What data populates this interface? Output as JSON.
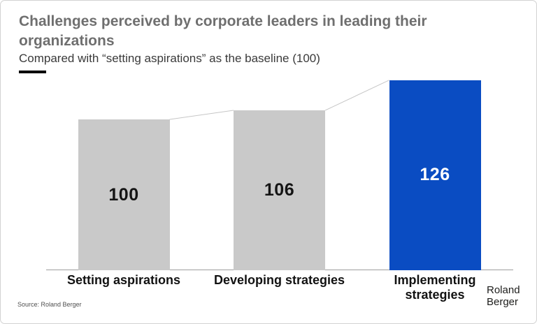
{
  "header": {
    "title": "Challenges perceived by corporate leaders in leading their organizations",
    "subtitle": "Compared with “setting aspirations” as the baseline (100)"
  },
  "chart_data": {
    "type": "bar",
    "categories": [
      "Setting aspirations",
      "Developing strategies",
      "Implementing strategies"
    ],
    "values": [
      100,
      106,
      126
    ],
    "title": "Challenges perceived by corporate leaders in leading their organizations",
    "subtitle": "Compared with “setting aspirations” as the baseline (100)",
    "xlabel": "",
    "ylabel": "",
    "ylim": [
      0,
      135
    ],
    "grid": false,
    "legend": false,
    "baseline_value": 100,
    "highlight_index": 2,
    "bar_colors": [
      "#C9C9C9",
      "#C9C9C9",
      "#0A4CC2"
    ],
    "value_label_colors": [
      "#141414",
      "#141414",
      "#FFFFFF"
    ],
    "connector_lines": true,
    "connector_color": "#C6C6C6",
    "axis_line_color": "#9E9E9E"
  },
  "colors": {
    "highlight_blue": "#0A4CC2",
    "bar_gray": "#C9C9C9",
    "title_gray": "#6F6F6F",
    "dash_black": "#000000"
  },
  "footer": {
    "source": "Source: Roland Berger",
    "logo": {
      "line1": "Roland",
      "line2": "Berger"
    }
  }
}
